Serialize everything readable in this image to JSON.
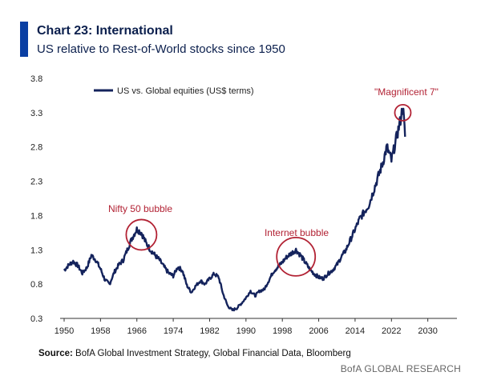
{
  "header": {
    "title": "Chart 23: International",
    "subtitle": "US relative to Rest-of-World stocks since 1950"
  },
  "footer": {
    "source_label": "Source:",
    "source_text": " BofA Global Investment Strategy, Global Financial Data, Bloomberg",
    "brand": "BofA GLOBAL RESEARCH"
  },
  "colors": {
    "line": "#14235c",
    "accent": "#0a3fa3",
    "annotation": "#b22234"
  },
  "chart_data": {
    "type": "line",
    "title": "Chart 23: International",
    "subtitle": "US relative to Rest-of-World stocks since 1950",
    "xlabel": "",
    "ylabel": "",
    "xlim": [
      1950,
      2032
    ],
    "ylim": [
      0.3,
      3.8
    ],
    "x_ticks": [
      1950,
      1958,
      1966,
      1974,
      1982,
      1990,
      1998,
      2006,
      2014,
      2022,
      2030
    ],
    "y_ticks": [
      0.3,
      0.8,
      1.3,
      1.8,
      2.3,
      2.8,
      3.3,
      3.8
    ],
    "y_tick_labels": [
      "0.3",
      "0.8",
      "1.3",
      "1.8",
      "2.3",
      "2.8",
      "3.3",
      "3.8"
    ],
    "grid": false,
    "legend_position": "top-left",
    "series": [
      {
        "name": "US vs. Global equities (US$ terms)",
        "x": [
          1950,
          1951,
          1952,
          1953,
          1954,
          1955,
          1956,
          1957,
          1958,
          1959,
          1960,
          1961,
          1962,
          1963,
          1964,
          1965,
          1966,
          1967,
          1968,
          1969,
          1970,
          1971,
          1972,
          1973,
          1974,
          1975,
          1976,
          1977,
          1978,
          1979,
          1980,
          1981,
          1982,
          1983,
          1984,
          1985,
          1986,
          1987,
          1988,
          1989,
          1990,
          1991,
          1992,
          1993,
          1994,
          1995,
          1996,
          1997,
          1998,
          1999,
          2000,
          2001,
          2002,
          2003,
          2004,
          2005,
          2006,
          2007,
          2008,
          2009,
          2010,
          2011,
          2012,
          2013,
          2014,
          2015,
          2016,
          2017,
          2018,
          2019,
          2020,
          2021,
          2022,
          2023,
          2024,
          2024.5,
          2025
        ],
        "values": [
          1.0,
          1.08,
          1.13,
          1.07,
          0.96,
          1.04,
          1.22,
          1.15,
          1.02,
          0.86,
          0.8,
          0.97,
          1.08,
          1.15,
          1.32,
          1.48,
          1.6,
          1.55,
          1.4,
          1.3,
          1.22,
          1.15,
          1.05,
          0.96,
          0.92,
          1.05,
          1.0,
          0.78,
          0.68,
          0.78,
          0.85,
          0.8,
          0.88,
          0.95,
          0.9,
          0.65,
          0.48,
          0.42,
          0.45,
          0.52,
          0.6,
          0.7,
          0.63,
          0.7,
          0.72,
          0.85,
          0.98,
          1.05,
          1.12,
          1.2,
          1.25,
          1.3,
          1.22,
          1.12,
          1.02,
          0.95,
          0.9,
          0.88,
          0.95,
          1.0,
          1.08,
          1.2,
          1.3,
          1.45,
          1.6,
          1.75,
          1.85,
          1.95,
          2.15,
          2.35,
          2.55,
          2.8,
          2.6,
          2.9,
          3.2,
          3.4,
          2.95
        ]
      }
    ],
    "annotations": [
      {
        "text": "Nifty 50 bubble",
        "x": 1967,
        "y": 1.52
      },
      {
        "text": "Internet bubble",
        "x": 2001,
        "y": 1.2
      },
      {
        "text": "\"Magnificent 7\"",
        "x": 2024.5,
        "y": 3.3
      }
    ]
  }
}
